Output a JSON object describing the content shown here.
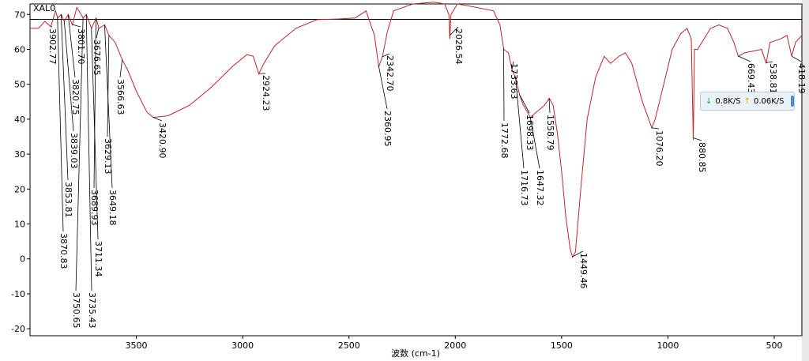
{
  "chart_data": {
    "type": "line",
    "title": "XAL0",
    "x_label": "波数 (cm-1)",
    "color": "#c0262a",
    "hline": 68.6,
    "xlim": [
      4000,
      370
    ],
    "ylim": [
      -22,
      73
    ],
    "xticks": [
      3500,
      3000,
      2500,
      2000,
      1500,
      1000,
      500
    ],
    "yticks": [
      -20,
      -10,
      0,
      10,
      20,
      30,
      40,
      50,
      60,
      70
    ],
    "x": [
      4000,
      3960,
      3930,
      3902,
      3880,
      3870,
      3853,
      3839,
      3820,
      3801,
      3780,
      3750,
      3735,
      3711,
      3689,
      3676,
      3649,
      3629,
      3600,
      3566,
      3540,
      3500,
      3450,
      3420,
      3350,
      3250,
      3150,
      3050,
      2980,
      2950,
      2924,
      2900,
      2850,
      2750,
      2650,
      2550,
      2470,
      2420,
      2380,
      2360,
      2342,
      2320,
      2290,
      2200,
      2100,
      2050,
      2030,
      2026,
      2020,
      1990,
      1900,
      1820,
      1790,
      1772,
      1750,
      1733,
      1716,
      1698,
      1680,
      1660,
      1647,
      1620,
      1580,
      1558,
      1540,
      1520,
      1500,
      1480,
      1460,
      1449,
      1435,
      1410,
      1380,
      1340,
      1300,
      1270,
      1230,
      1200,
      1170,
      1120,
      1090,
      1076,
      1060,
      1020,
      980,
      940,
      910,
      890,
      881,
      875,
      860,
      840,
      800,
      760,
      720,
      690,
      669,
      640,
      600,
      560,
      538,
      520,
      470,
      440,
      418,
      400,
      370
    ],
    "series": [
      {
        "name": "XAL0",
        "values": [
          66,
          66,
          68,
          66.5,
          71,
          69,
          70,
          68,
          70,
          67,
          72,
          69,
          70,
          66,
          69,
          66,
          67,
          64,
          62,
          57,
          54,
          48,
          42,
          40.5,
          41,
          44,
          49,
          55,
          58.5,
          58,
          53,
          56,
          61,
          66,
          68.5,
          68.7,
          69,
          71,
          64,
          55,
          58,
          65,
          71,
          73,
          73.5,
          73,
          70,
          63,
          70,
          73,
          72,
          71,
          67,
          60,
          59,
          54,
          52,
          47,
          44,
          42,
          40.5,
          42,
          44,
          46,
          44,
          36,
          25,
          12,
          3,
          0.5,
          2,
          20,
          40,
          52,
          58,
          56,
          58,
          59,
          56,
          45,
          40,
          37.5,
          40,
          50,
          60,
          64.5,
          66,
          63,
          34,
          60,
          60,
          62,
          66,
          67,
          66,
          62,
          58,
          59,
          59.5,
          60,
          56,
          62,
          63,
          64,
          58,
          62,
          64
        ]
      }
    ],
    "peaks": [
      {
        "x": 3902.77,
        "label": "3902.77"
      },
      {
        "x": 3870.83,
        "label": "3870.83"
      },
      {
        "x": 3853.81,
        "label": "3853.81"
      },
      {
        "x": 3839.03,
        "label": "3839.03"
      },
      {
        "x": 3820.75,
        "label": "3820.75"
      },
      {
        "x": 3801.7,
        "label": "3801.70"
      },
      {
        "x": 3750.65,
        "label": "3750.65"
      },
      {
        "x": 3735.43,
        "label": "3735.43"
      },
      {
        "x": 3711.34,
        "label": "3711.34"
      },
      {
        "x": 3689.93,
        "label": "3689.93"
      },
      {
        "x": 3676.65,
        "label": "3676.65"
      },
      {
        "x": 3649.18,
        "label": "3649.18"
      },
      {
        "x": 3629.13,
        "label": "3629.13"
      },
      {
        "x": 3566.63,
        "label": "3566.63"
      },
      {
        "x": 3420.9,
        "label": "3420.90"
      },
      {
        "x": 2924.23,
        "label": "2924.23"
      },
      {
        "x": 2360.95,
        "label": "2360.95"
      },
      {
        "x": 2342.7,
        "label": "2342.70"
      },
      {
        "x": 2026.54,
        "label": "2026.54"
      },
      {
        "x": 1772.68,
        "label": "1772.68"
      },
      {
        "x": 1733.63,
        "label": "1733.63"
      },
      {
        "x": 1716.73,
        "label": "1716.73"
      },
      {
        "x": 1698.33,
        "label": "1698.33"
      },
      {
        "x": 1647.32,
        "label": "1647.32"
      },
      {
        "x": 1558.79,
        "label": "1558.79"
      },
      {
        "x": 1449.46,
        "label": "1449.46"
      },
      {
        "x": 1076.2,
        "label": "1076.20"
      },
      {
        "x": 880.85,
        "label": "880.85"
      },
      {
        "x": 669.43,
        "label": "669.43"
      },
      {
        "x": 538.81,
        "label": "538.81"
      },
      {
        "x": 418.19,
        "label": "418.19"
      }
    ]
  },
  "widget": {
    "download": "0.8K/S",
    "upload": "0.06K/S"
  }
}
